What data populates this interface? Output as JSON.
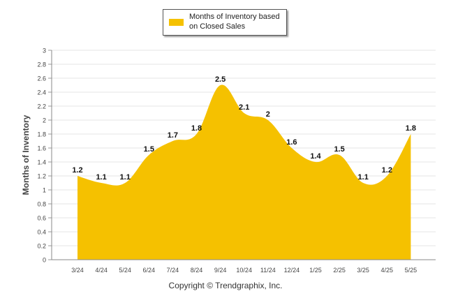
{
  "chart_data": {
    "type": "area",
    "categories": [
      "3/24",
      "4/24",
      "5/24",
      "6/24",
      "7/24",
      "8/24",
      "9/24",
      "10/24",
      "11/24",
      "12/24",
      "1/25",
      "2/25",
      "3/25",
      "4/25",
      "5/25"
    ],
    "series": [
      {
        "name": "Months of Inventory based on Closed Sales",
        "values": [
          1.2,
          1.1,
          1.1,
          1.5,
          1.7,
          1.8,
          2.5,
          2.1,
          2,
          1.6,
          1.4,
          1.5,
          1.1,
          1.2,
          1.8
        ],
        "labels": [
          "1.2",
          "1.1",
          "1.1",
          "1.5",
          "1.7",
          "1.8",
          "2.5",
          "2.1",
          "2",
          "1.6",
          "1.4",
          "1.5",
          "1.1",
          "1.2",
          "1.8"
        ]
      }
    ],
    "ylabel": "Months of Inventory",
    "ylim": [
      0,
      3
    ],
    "yticks": [
      "0",
      "0.2",
      "0.4",
      "0.6",
      "0.8",
      "1",
      "1.2",
      "1.4",
      "1.6",
      "1.8",
      "2",
      "2.2",
      "2.4",
      "2.6",
      "2.8",
      "3"
    ],
    "grid": true,
    "legend_position": "top-center",
    "colors": {
      "fill": "#F5C100",
      "grid": "#e6e6e6"
    }
  },
  "legend": {
    "label": "Months of Inventory based on Closed Sales"
  },
  "footer": {
    "text": "Copyright © Trendgraphix, Inc."
  }
}
